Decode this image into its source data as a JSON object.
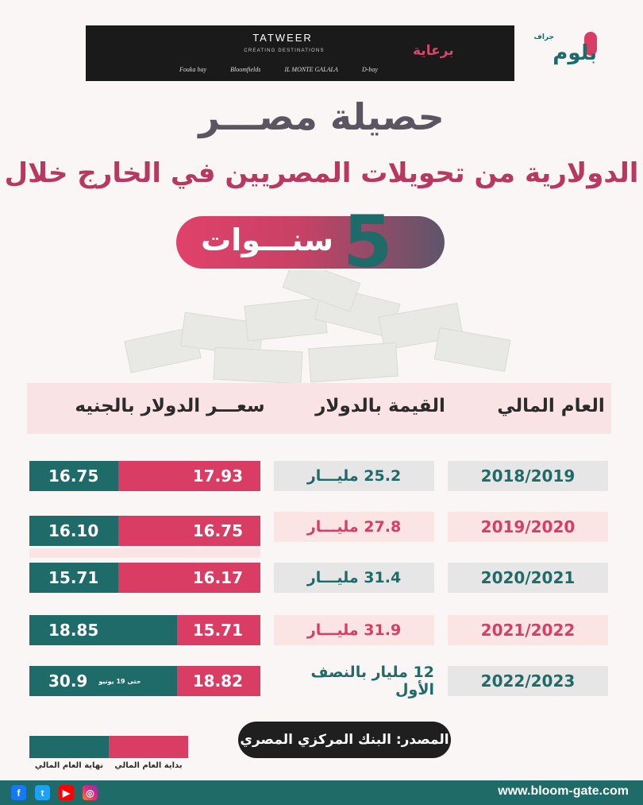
{
  "sponsor": {
    "brand": "TATWEER",
    "tagline": "CREATING DESTINATIONS",
    "projects": [
      "Fouka bay",
      "Bloomfields",
      "IL MONTE GALALA",
      "D-bay"
    ],
    "label": "برعاية"
  },
  "logo": {
    "sub": "جراف",
    "main": "بلوم"
  },
  "title": {
    "main": "حصيلة مصـــر",
    "sub": "الدولارية من تحويلات المصريين في الخارج خلال",
    "years_number": "5",
    "years_word": "سنـــوات"
  },
  "table": {
    "headers": {
      "year": "العام المالي",
      "value": "القيمة بالدولار",
      "rate": "سعـــر الدولار بالجنيه"
    },
    "rows": [
      {
        "year": "2018/2019",
        "value": "25.2 مليـــار",
        "rate_start": "17.93",
        "rate_end": "16.75",
        "note": ""
      },
      {
        "year": "2019/2020",
        "value": "27.8 مليـــار",
        "rate_start": "16.75",
        "rate_end": "16.10",
        "note": ""
      },
      {
        "year": "2020/2021",
        "value": "31.4 مليـــار",
        "rate_start": "16.17",
        "rate_end": "15.71",
        "note": ""
      },
      {
        "year": "2021/2022",
        "value": "31.9 مليـــار",
        "rate_start": "15.71",
        "rate_end": "18.85",
        "note": ""
      },
      {
        "year": "2022/2023",
        "value": "12 مليار بالنصف الأول",
        "rate_start": "18.82",
        "rate_end": "30.9",
        "note": "حتى 19 يونيو"
      }
    ]
  },
  "source": "المصدر: البنك المركزي المصري",
  "legend": {
    "start_label": "بداية العام المالي",
    "end_label": "نهاية العام المالي"
  },
  "footer": {
    "site": "www.bloom-gate.com",
    "social_icons": [
      "facebook-icon",
      "twitter-icon",
      "youtube-icon",
      "instagram-icon"
    ]
  },
  "colors": {
    "teal": "#1f6b6a",
    "pink": "#d93d63",
    "light_pink": "#fbe4e4",
    "grey": "#e6e6e6"
  }
}
